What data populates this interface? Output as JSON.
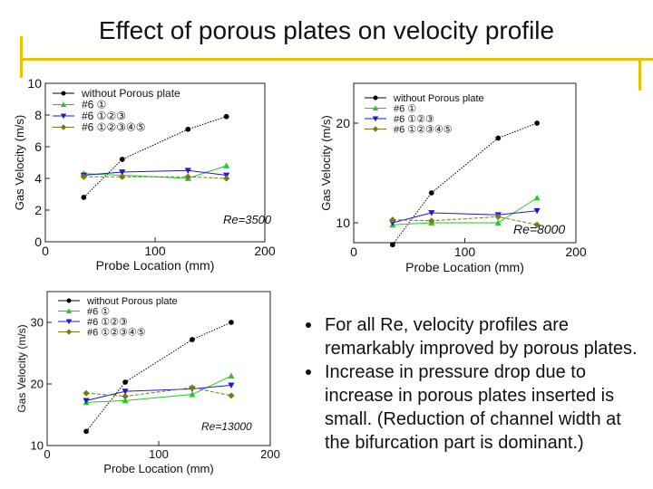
{
  "slide": {
    "title": "Effect of porous plates on velocity profile",
    "bullets": [
      "For all Re, velocity profiles are remarkably improved by porous plates.",
      "Increase in pressure drop due to increase in porous plates inserted is small. (Reduction of channel width at the bifurcation part is dominant.)"
    ]
  },
  "colors": {
    "accent": "#e8c400"
  },
  "chart_data": [
    {
      "type": "line",
      "title": "",
      "annotation": "Re=3500",
      "xlabel": "Probe Location (mm)",
      "ylabel": "Gas Velocity (m/s)",
      "xlim": [
        0,
        200
      ],
      "ylim": [
        0,
        10
      ],
      "xticks": [
        0,
        100,
        200
      ],
      "yticks": [
        0,
        2,
        4,
        6,
        8,
        10
      ],
      "x": [
        35,
        70,
        130,
        165
      ],
      "series": [
        {
          "name": "without Porous plate",
          "values": [
            2.8,
            5.2,
            7.1,
            7.9
          ],
          "color": "#000000",
          "marker": "circle"
        },
        {
          "name": "#6 ①",
          "values": [
            4.3,
            4.2,
            4.0,
            4.8
          ],
          "color": "#22cc22",
          "marker": "triangle-up"
        },
        {
          "name": "#6 ①②③",
          "values": [
            4.2,
            4.4,
            4.5,
            4.2
          ],
          "color": "#1a1ad6",
          "marker": "triangle-down"
        },
        {
          "name": "#6 ①②③④⑤",
          "values": [
            4.1,
            4.1,
            4.1,
            4.0
          ],
          "color": "#7a7a10",
          "marker": "diamond"
        }
      ]
    },
    {
      "type": "line",
      "title": "",
      "annotation": "Re=8000",
      "xlabel": "Probe Location (mm)",
      "ylabel": "Gas Velocity (m/s)",
      "xlim": [
        0,
        200
      ],
      "ylim": [
        8,
        24
      ],
      "xticks": [
        0,
        100,
        200
      ],
      "yticks": [
        10,
        20
      ],
      "x": [
        35,
        70,
        130,
        165
      ],
      "series": [
        {
          "name": "without Porous plate",
          "values": [
            7.8,
            13.0,
            18.5,
            20.0
          ],
          "color": "#000000",
          "marker": "circle"
        },
        {
          "name": "#6 ①",
          "values": [
            9.8,
            10.0,
            10.0,
            12.5
          ],
          "color": "#22cc22",
          "marker": "triangle-up"
        },
        {
          "name": "#6 ①②③",
          "values": [
            10.0,
            11.0,
            10.8,
            11.2
          ],
          "color": "#1a1ad6",
          "marker": "triangle-down"
        },
        {
          "name": "#6 ①②③④⑤",
          "values": [
            10.3,
            10.2,
            10.6,
            9.8
          ],
          "color": "#7a7a10",
          "marker": "diamond"
        }
      ]
    },
    {
      "type": "line",
      "title": "",
      "annotation": "Re=13000",
      "xlabel": "Probe Location (mm)",
      "ylabel": "Gas Velocity (m/s)",
      "xlim": [
        0,
        200
      ],
      "ylim": [
        10,
        35
      ],
      "xticks": [
        0,
        100,
        200
      ],
      "yticks": [
        10,
        20,
        30
      ],
      "x": [
        35,
        70,
        130,
        165
      ],
      "series": [
        {
          "name": "without Porous plate",
          "values": [
            12.3,
            20.3,
            27.2,
            30.0
          ],
          "color": "#000000",
          "marker": "circle"
        },
        {
          "name": "#6 ①",
          "values": [
            17.0,
            17.3,
            18.3,
            21.3
          ],
          "color": "#22cc22",
          "marker": "triangle-up"
        },
        {
          "name": "#6 ①②③",
          "values": [
            17.3,
            18.8,
            19.2,
            19.8
          ],
          "color": "#1a1ad6",
          "marker": "triangle-down"
        },
        {
          "name": "#6 ①②③④⑤",
          "values": [
            18.5,
            18.0,
            19.4,
            18.1
          ],
          "color": "#7a7a10",
          "marker": "diamond"
        }
      ]
    }
  ]
}
